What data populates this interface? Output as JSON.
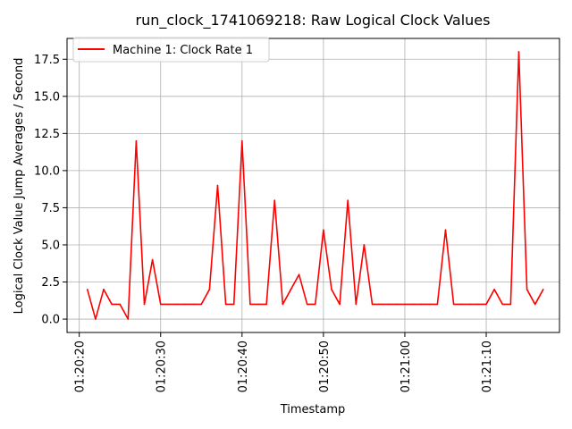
{
  "chart_data": {
    "type": "line",
    "title": "run_clock_1741069218: Raw Logical Clock Values",
    "xlabel": "Timestamp",
    "ylabel": "Logical Clock Value Jump Averages / Second",
    "x_unit": "seconds after 01:20:00",
    "xlim": [
      18.5,
      79.0
    ],
    "ylim": [
      -0.9,
      18.9
    ],
    "x_ticks": [
      {
        "value": 20,
        "label": "01:20:20"
      },
      {
        "value": 30,
        "label": "01:20:30"
      },
      {
        "value": 40,
        "label": "01:20:40"
      },
      {
        "value": 50,
        "label": "01:20:50"
      },
      {
        "value": 60,
        "label": "01:21:00"
      },
      {
        "value": 70,
        "label": "01:21:10"
      }
    ],
    "y_ticks": [
      {
        "value": 0.0,
        "label": "0.0"
      },
      {
        "value": 2.5,
        "label": "2.5"
      },
      {
        "value": 5.0,
        "label": "5.0"
      },
      {
        "value": 7.5,
        "label": "7.5"
      },
      {
        "value": 10.0,
        "label": "10.0"
      },
      {
        "value": 12.5,
        "label": "12.5"
      },
      {
        "value": 15.0,
        "label": "15.0"
      },
      {
        "value": 17.5,
        "label": "17.5"
      }
    ],
    "grid": true,
    "legend_position": "top-left",
    "series": [
      {
        "name": "Machine 1: Clock Rate 1",
        "color": "#ff0000",
        "x": [
          21,
          22,
          23,
          24,
          25,
          26,
          27,
          28,
          29,
          30,
          31,
          32,
          33,
          34,
          35,
          36,
          37,
          38,
          39,
          40,
          41,
          42,
          43,
          44,
          45,
          46,
          47,
          48,
          49,
          50,
          51,
          52,
          53,
          54,
          55,
          56,
          57,
          58,
          59,
          60,
          61,
          62,
          63,
          64,
          65,
          66,
          67,
          68,
          69,
          70,
          71,
          72,
          73,
          74,
          75,
          76,
          77
        ],
        "y": [
          2,
          0,
          2,
          1,
          1,
          0,
          12,
          1,
          4,
          1,
          1,
          1,
          1,
          1,
          1,
          2,
          9,
          1,
          1,
          12,
          1,
          1,
          1,
          8,
          1,
          2,
          3,
          1,
          1,
          6,
          2,
          1,
          8,
          1,
          5,
          1,
          1,
          1,
          1,
          1,
          1,
          1,
          1,
          1,
          6,
          1,
          1,
          1,
          1,
          1,
          2,
          1,
          1,
          18,
          2,
          1,
          2
        ]
      }
    ]
  }
}
